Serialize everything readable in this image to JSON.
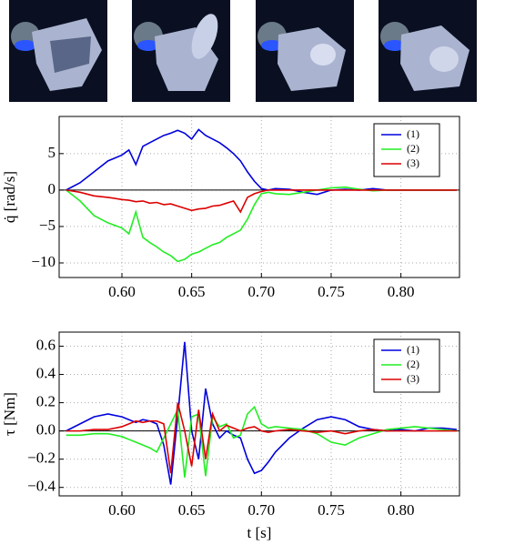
{
  "chart_data": [
    {
      "type": "line",
      "ylabel": "q̇ [rad/s]",
      "x": [
        0.56,
        0.57,
        0.58,
        0.59,
        0.6,
        0.605,
        0.61,
        0.615,
        0.62,
        0.625,
        0.63,
        0.635,
        0.64,
        0.645,
        0.65,
        0.655,
        0.66,
        0.665,
        0.67,
        0.675,
        0.68,
        0.685,
        0.69,
        0.695,
        0.7,
        0.705,
        0.71,
        0.72,
        0.73,
        0.74,
        0.75,
        0.76,
        0.77,
        0.78,
        0.79,
        0.8,
        0.81,
        0.82,
        0.83,
        0.84
      ],
      "series": [
        {
          "name": "(1)",
          "color": "#0000dd",
          "values": [
            0,
            1,
            2.5,
            4,
            4.8,
            5.5,
            3.5,
            6,
            6.5,
            7,
            7.5,
            7.8,
            8.2,
            7.8,
            7,
            8.3,
            7.5,
            7,
            6.5,
            5.8,
            5,
            4,
            2.5,
            1.2,
            0.2,
            0,
            0.2,
            0.1,
            -0.3,
            -0.6,
            0,
            0.1,
            0,
            0.2,
            0,
            0,
            0,
            0,
            0,
            0
          ]
        },
        {
          "name": "(2)",
          "color": "#22ee22",
          "values": [
            0,
            -1.5,
            -3.5,
            -4.5,
            -5.2,
            -6,
            -3,
            -6.5,
            -7.2,
            -7.8,
            -8.5,
            -9,
            -9.8,
            -9.5,
            -8.8,
            -8.5,
            -8,
            -7.5,
            -7.2,
            -6.5,
            -6,
            -5.5,
            -4,
            -2,
            -0.5,
            -0.3,
            -0.5,
            -0.6,
            -0.3,
            0,
            0.3,
            0.4,
            0.1,
            -0.1,
            0,
            0,
            0,
            0,
            0,
            0
          ]
        },
        {
          "name": "(3)",
          "color": "#dd0000",
          "values": [
            0,
            -0.3,
            -0.8,
            -1,
            -1.3,
            -1.4,
            -1.6,
            -1.5,
            -1.8,
            -1.7,
            -2,
            -1.9,
            -2.2,
            -2.5,
            -2.8,
            -2.6,
            -2.5,
            -2.2,
            -2.1,
            -1.8,
            -1.5,
            -3,
            -1,
            -0.5,
            -0.2,
            0,
            0,
            0,
            0,
            0,
            0,
            0,
            0,
            0,
            0,
            0,
            0,
            0,
            0,
            0
          ]
        }
      ],
      "xlim": [
        0.555,
        0.842
      ],
      "ylim": [
        -12,
        10.1
      ],
      "xticks": [
        {
          "value": 0.6,
          "label": "0.60"
        },
        0.65,
        {
          "value": 0.7,
          "label": "0.70"
        },
        0.75,
        {
          "value": 0.8,
          "label": "0.80"
        }
      ],
      "yticks": [
        {
          "value": -10,
          "label": "−10"
        },
        {
          "value": -5,
          "label": "−5"
        },
        0,
        5
      ],
      "grid": true,
      "zero_line": true,
      "legend": "upper right"
    },
    {
      "type": "line",
      "ylabel": "τ [Nm]",
      "xlabel": "t [s]",
      "x": [
        0.56,
        0.57,
        0.58,
        0.59,
        0.6,
        0.605,
        0.61,
        0.615,
        0.62,
        0.625,
        0.63,
        0.635,
        0.64,
        0.645,
        0.65,
        0.655,
        0.66,
        0.665,
        0.67,
        0.675,
        0.68,
        0.685,
        0.69,
        0.695,
        0.7,
        0.705,
        0.71,
        0.72,
        0.73,
        0.74,
        0.75,
        0.76,
        0.77,
        0.78,
        0.79,
        0.8,
        0.81,
        0.82,
        0.83,
        0.84
      ],
      "series": [
        {
          "name": "(1)",
          "color": "#0000dd",
          "values": [
            0,
            0.05,
            0.1,
            0.12,
            0.1,
            0.08,
            0.06,
            0.08,
            0.07,
            0.05,
            -0.1,
            -0.38,
            0.1,
            0.63,
            0,
            -0.2,
            0.3,
            0.05,
            -0.05,
            0,
            -0.03,
            -0.05,
            -0.2,
            -0.3,
            -0.28,
            -0.22,
            -0.15,
            -0.05,
            0.02,
            0.08,
            0.1,
            0.08,
            0.03,
            0.01,
            0,
            0.01,
            0,
            0.02,
            0.02,
            0.01
          ]
        },
        {
          "name": "(2)",
          "color": "#22ee22",
          "values": [
            -0.03,
            -0.03,
            -0.02,
            -0.02,
            -0.04,
            -0.06,
            -0.08,
            -0.1,
            -0.12,
            -0.15,
            -0.05,
            0.05,
            0.15,
            -0.33,
            0.1,
            0.12,
            -0.32,
            0.1,
            0.03,
            0.05,
            -0.05,
            -0.03,
            0.12,
            0.17,
            0.05,
            0.02,
            0.03,
            0.02,
            0.01,
            -0.02,
            -0.08,
            -0.1,
            -0.05,
            -0.02,
            0.01,
            0.02,
            0.03,
            0.02,
            0.01,
            0
          ]
        },
        {
          "name": "(3)",
          "color": "#dd0000",
          "values": [
            0,
            0,
            0.01,
            0.01,
            0.03,
            0.05,
            0.07,
            0.06,
            0.07,
            0.07,
            0.05,
            -0.3,
            0.2,
            0,
            -0.25,
            0.15,
            -0.2,
            0.12,
            0,
            0.04,
            0.02,
            0,
            0.02,
            0.03,
            0,
            -0.01,
            0,
            0.01,
            0,
            -0.01,
            0,
            -0.02,
            0,
            0.01,
            0,
            0,
            0,
            0,
            0,
            0
          ]
        }
      ],
      "xlim": [
        0.555,
        0.842
      ],
      "ylim": [
        -0.46,
        0.7
      ],
      "xticks": [
        {
          "value": 0.6,
          "label": "0.60"
        },
        0.65,
        {
          "value": 0.7,
          "label": "0.70"
        },
        0.75,
        {
          "value": 0.8,
          "label": "0.80"
        }
      ],
      "yticks": [
        {
          "value": -0.4,
          "label": "−0.4"
        },
        {
          "value": -0.2,
          "label": "−0.2"
        },
        {
          "value": 0,
          "label": "0.0"
        },
        0.2,
        0.4,
        0.6
      ],
      "grid": true,
      "zero_line": true,
      "legend": "upper right"
    }
  ]
}
